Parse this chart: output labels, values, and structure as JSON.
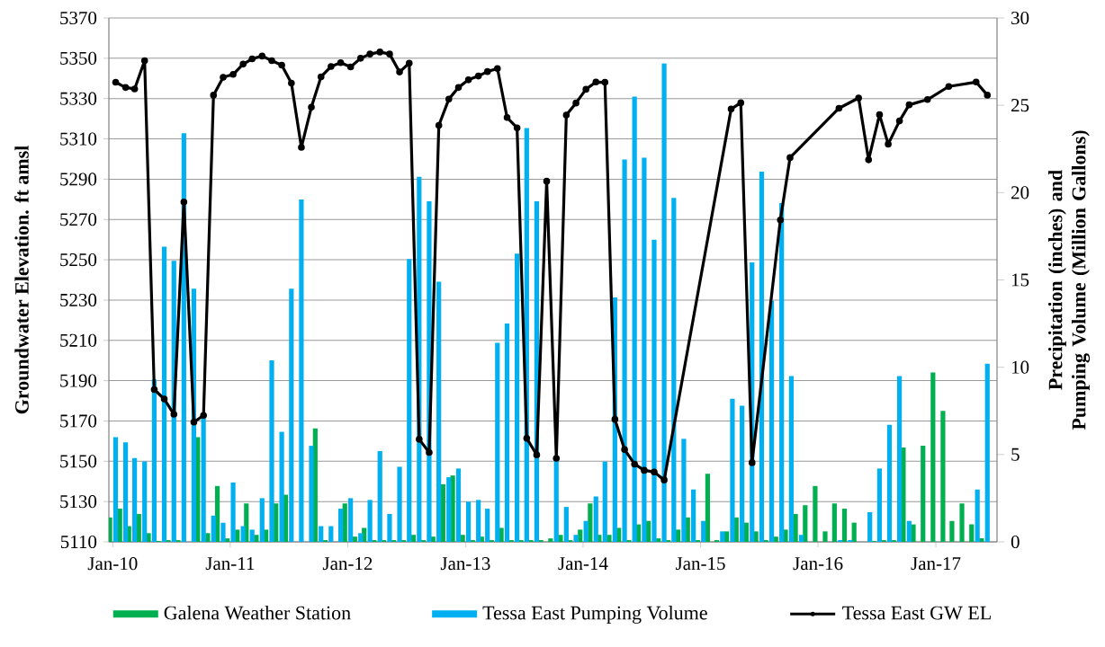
{
  "chart_data": {
    "type": "bar",
    "ylabel": "Groundwater Elevation. ft amsl",
    "y2label": "Precipitation (inches) and Pumping Volume (Million Gallons)",
    "x": [
      "2010-01",
      "2010-02",
      "2010-03",
      "2010-04",
      "2010-05",
      "2010-06",
      "2010-07",
      "2010-08",
      "2010-09",
      "2010-10",
      "2010-11",
      "2010-12",
      "2011-01",
      "2011-02",
      "2011-03",
      "2011-04",
      "2011-05",
      "2011-06",
      "2011-07",
      "2011-08",
      "2011-09",
      "2011-10",
      "2011-11",
      "2011-12",
      "2012-01",
      "2012-02",
      "2012-03",
      "2012-04",
      "2012-05",
      "2012-06",
      "2012-07",
      "2012-08",
      "2012-09",
      "2012-10",
      "2012-11",
      "2012-12",
      "2013-01",
      "2013-02",
      "2013-03",
      "2013-04",
      "2013-05",
      "2013-06",
      "2013-07",
      "2013-08",
      "2013-09",
      "2013-10",
      "2013-11",
      "2013-12",
      "2014-01",
      "2014-02",
      "2014-03",
      "2014-04",
      "2014-05",
      "2014-06",
      "2014-07",
      "2014-08",
      "2014-09",
      "2014-10",
      "2014-11",
      "2014-12",
      "2015-01",
      "2015-02",
      "2015-03",
      "2015-04",
      "2015-05",
      "2015-06",
      "2015-07",
      "2015-08",
      "2015-09",
      "2015-10",
      "2015-11",
      "2015-12",
      "2016-01",
      "2016-02",
      "2016-03",
      "2016-04",
      "2016-05",
      "2016-06",
      "2016-07",
      "2016-08",
      "2016-09",
      "2016-10",
      "2016-11",
      "2016-12",
      "2017-01",
      "2017-02",
      "2017-03",
      "2017-04",
      "2017-05",
      "2017-06"
    ],
    "series": [
      {
        "name": "Galena Weather Station",
        "axis": "y2",
        "color": "#00b050",
        "values": [
          1.4,
          1.9,
          0.9,
          1.6,
          0.5,
          0.05,
          0.1,
          0.1,
          0,
          6.0,
          0.5,
          3.2,
          0.2,
          0.7,
          2.2,
          0.4,
          0.7,
          2.2,
          2.7,
          0,
          0,
          6.5,
          0.1,
          0,
          2.2,
          0.3,
          0.8,
          0.1,
          0.1,
          0.1,
          0.1,
          0.4,
          0.1,
          0.3,
          3.3,
          3.8,
          0.4,
          0.1,
          0.3,
          0.1,
          0.8,
          0.1,
          0.1,
          0.1,
          0.1,
          0.2,
          0.4,
          0.1,
          0.7,
          2.2,
          0.4,
          0.4,
          0.8,
          0.1,
          1.0,
          1.2,
          0.2,
          0.1,
          0.7,
          1.4,
          0.1,
          3.9,
          0.1,
          0.6,
          1.4,
          1.1,
          0.6,
          0.1,
          0.3,
          0.7,
          1.6,
          2.1,
          3.2,
          0.6,
          2.2,
          1.9,
          1.1,
          0,
          0.05,
          0.1,
          0.1,
          5.4,
          1.0,
          5.5,
          9.7,
          7.5,
          1.2,
          2.2,
          1.0,
          0.2
        ]
      },
      {
        "name": "Tessa East Pumping Volume",
        "axis": "y2",
        "color": "#00b0f0",
        "values": [
          6.0,
          5.7,
          4.8,
          4.6,
          9.3,
          16.9,
          16.1,
          23.4,
          14.5,
          7.3,
          1.5,
          1.1,
          3.4,
          0.9,
          0.7,
          2.5,
          10.4,
          6.3,
          14.5,
          19.6,
          5.5,
          0.9,
          0.9,
          1.9,
          2.5,
          0.5,
          2.4,
          5.2,
          1.6,
          4.3,
          16.2,
          20.9,
          19.5,
          14.9,
          3.7,
          4.2,
          2.3,
          2.4,
          1.9,
          11.4,
          12.5,
          16.5,
          23.7,
          19.5,
          null,
          4.9,
          2.0,
          0.4,
          1.2,
          2.6,
          4.6,
          14.0,
          21.9,
          25.5,
          22.0,
          17.3,
          27.4,
          19.7,
          5.9,
          3.0,
          1.2,
          0,
          0.6,
          8.2,
          7.8,
          16.0,
          21.2,
          13.8,
          19.4,
          9.5,
          0.4,
          0,
          0,
          0,
          0.1,
          0.1,
          0,
          1.7,
          4.2,
          6.7,
          9.5,
          1.2,
          0,
          0,
          0,
          0,
          0,
          0,
          3.0,
          10.2
        ]
      },
      {
        "name": "Tessa East GW EL",
        "type": "line",
        "color": "#000000",
        "x": [
          "2010-01-10",
          "2010-02-10",
          "2010-03-10",
          "2010-04-10",
          "2010-05-10",
          "2010-06-10",
          "2010-07-10",
          "2010-08-10",
          "2010-09-10",
          "2010-10-10",
          "2010-11-10",
          "2010-12-10",
          "2011-01-10",
          "2011-02-10",
          "2011-03-10",
          "2011-04-10",
          "2011-05-10",
          "2011-06-10",
          "2011-07-10",
          "2011-08-10",
          "2011-09-10",
          "2011-10-10",
          "2011-11-10",
          "2011-12-10",
          "2012-01-10",
          "2012-02-10",
          "2012-03-10",
          "2012-04-10",
          "2012-05-10",
          "2012-06-10",
          "2012-07-10",
          "2012-08-10",
          "2012-09-10",
          "2012-10-10",
          "2012-11-10",
          "2012-12-10",
          "2013-01-10",
          "2013-02-10",
          "2013-03-10",
          "2013-04-10",
          "2013-05-10",
          "2013-06-10",
          "2013-07-10",
          "2013-08-10",
          "2013-09-10",
          "2013-10-10",
          "2013-11-10",
          "2013-12-10",
          "2014-01-10",
          "2014-02-10",
          "2014-03-10",
          "2014-04-10",
          "2014-05-10",
          "2014-06-10",
          "2014-07-10",
          "2014-08-10",
          "2014-09-10",
          "2015-04-06",
          "2015-05-06",
          "2015-06-10",
          "2015-09-06",
          "2015-10-06",
          "2016-03-06",
          "2016-05-06",
          "2016-06-06",
          "2016-07-10",
          "2016-08-06",
          "2016-09-10",
          "2016-10-10",
          "2016-12-06",
          "2017-02-10",
          "2017-05-06",
          "2017-06-10"
        ],
        "values": [
          5338.1,
          5335.5,
          5334.8,
          5348.8,
          5185.6,
          5180.9,
          5173.3,
          5278.7,
          5169.4,
          5172.8,
          5331.7,
          5340.6,
          5342.0,
          5347.1,
          5349.7,
          5351.1,
          5348.8,
          5346.6,
          5337.7,
          5305.8,
          5325.7,
          5340.8,
          5345.9,
          5347.8,
          5345.7,
          5350.0,
          5352.1,
          5353.1,
          5352.1,
          5343.2,
          5347.6,
          5160.9,
          5154.4,
          5316.7,
          5329.7,
          5335.5,
          5339.3,
          5341.2,
          5343.4,
          5344.9,
          5320.6,
          5315.5,
          5161.4,
          5153.2,
          5289.0,
          5151.5,
          5321.8,
          5327.8,
          5334.6,
          5338.2,
          5338.1,
          5170.8,
          5155.8,
          5148.6,
          5145.5,
          5144.7,
          5140.7,
          5324.8,
          5327.9,
          5149.3,
          5269.8,
          5300.7,
          5325.2,
          5330.3,
          5299.6,
          5322.0,
          5307.4,
          5318.9,
          5326.9,
          5329.5,
          5336.0,
          5338.2,
          5331.7
        ]
      }
    ],
    "marker": "circle",
    "xlim": [
      "2009-12-20",
      "2017-07-10"
    ],
    "xticks": [
      {
        "value": "2010-01-01",
        "label": "Jan-10"
      },
      {
        "value": "2011-01-01",
        "label": "Jan-11"
      },
      {
        "value": "2012-01-01",
        "label": "Jan-12"
      },
      {
        "value": "2013-01-01",
        "label": "Jan-13"
      },
      {
        "value": "2014-01-01",
        "label": "Jan-14"
      },
      {
        "value": "2015-01-01",
        "label": "Jan-15"
      },
      {
        "value": "2016-01-01",
        "label": "Jan-16"
      },
      {
        "value": "2017-01-01",
        "label": "Jan-17"
      }
    ],
    "ylim": [
      5110,
      5370
    ],
    "yticks": [
      5110,
      5130,
      5150,
      5170,
      5190,
      5210,
      5230,
      5250,
      5270,
      5290,
      5310,
      5330,
      5350,
      5370
    ],
    "y2lim": [
      0,
      30
    ],
    "y2ticks": [
      0,
      5,
      10,
      15,
      20,
      25,
      30
    ],
    "grid": "y",
    "legend": "bottom"
  }
}
